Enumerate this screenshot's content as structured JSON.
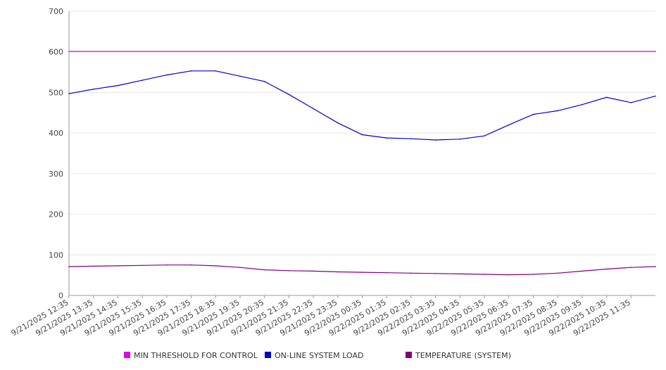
{
  "chart_data": {
    "type": "line",
    "title": "",
    "xlabel": "",
    "ylabel": "",
    "ylim": [
      0,
      700
    ],
    "y_ticks": [
      0,
      100,
      200,
      300,
      400,
      500,
      600,
      700
    ],
    "grid": "horizontal",
    "legend_position": "bottom",
    "x_tick_labels": [
      "9/21/2025 12:35",
      "9/21/2025 13:35",
      "9/21/2025 14:35",
      "9/21/2025 15:35",
      "9/21/2025 16:35",
      "9/21/2025 17:35",
      "9/21/2025 18:35",
      "9/21/2025 19:35",
      "9/21/2025 20:35",
      "9/21/2025 21:35",
      "9/21/2025 22:35",
      "9/21/2025 23:35",
      "9/22/2025 00:35",
      "9/22/2025 01:35",
      "9/22/2025 02:35",
      "9/22/2025 03:35",
      "9/22/2025 04:35",
      "9/22/2025 05:35",
      "9/22/2025 06:35",
      "9/22/2025 07:35",
      "9/22/2025 08:35",
      "9/22/2025 09:35",
      "9/22/2025 10:35",
      "9/22/2025 11:35"
    ],
    "x_range": [
      "9/21/2025 12:35",
      "9/22/2025 12:35"
    ],
    "series": [
      {
        "name": "MIN THRESHOLD FOR CONTROL",
        "color": "#e000e0",
        "x": [
          "9/21/2025 12:35",
          "9/22/2025 12:35"
        ],
        "values": [
          601,
          601
        ]
      },
      {
        "name": "ON-LINE SYSTEM LOAD",
        "color": "#0000cc",
        "x": [
          "9/21/2025 12:35",
          "9/21/2025 13:35",
          "9/21/2025 14:35",
          "9/21/2025 15:35",
          "9/21/2025 16:35",
          "9/21/2025 17:35",
          "9/21/2025 18:35",
          "9/21/2025 19:35",
          "9/21/2025 20:35",
          "9/21/2025 21:35",
          "9/21/2025 22:35",
          "9/21/2025 23:35",
          "9/22/2025 00:35",
          "9/22/2025 01:35",
          "9/22/2025 02:35",
          "9/22/2025 03:35",
          "9/22/2025 04:35",
          "9/22/2025 05:35",
          "9/22/2025 06:35",
          "9/22/2025 07:35",
          "9/22/2025 08:35",
          "9/22/2025 09:35",
          "9/22/2025 10:35",
          "9/22/2025 11:35",
          "9/22/2025 12:35"
        ],
        "values": [
          497,
          508,
          517,
          530,
          543,
          553,
          553,
          540,
          527,
          495,
          460,
          425,
          396,
          388,
          386,
          383,
          385,
          393,
          420,
          446,
          455,
          470,
          488,
          475,
          491
        ]
      },
      {
        "name": "TEMPERATURE (SYSTEM)",
        "color": "#800080",
        "x": [
          "9/21/2025 12:35",
          "9/21/2025 13:35",
          "9/21/2025 14:35",
          "9/21/2025 15:35",
          "9/21/2025 16:35",
          "9/21/2025 17:35",
          "9/21/2025 18:35",
          "9/21/2025 19:35",
          "9/21/2025 20:35",
          "9/21/2025 21:35",
          "9/21/2025 22:35",
          "9/21/2025 23:35",
          "9/22/2025 00:35",
          "9/22/2025 01:35",
          "9/22/2025 02:35",
          "9/22/2025 03:35",
          "9/22/2025 04:35",
          "9/22/2025 05:35",
          "9/22/2025 06:35",
          "9/22/2025 07:35",
          "9/22/2025 08:35",
          "9/22/2025 09:35",
          "9/22/2025 10:35",
          "9/22/2025 11:35",
          "9/22/2025 12:35"
        ],
        "values": [
          71,
          72,
          73,
          74,
          75,
          75,
          73,
          69,
          63,
          61,
          60,
          58,
          57,
          56,
          55,
          54,
          53,
          52,
          51,
          52,
          55,
          60,
          65,
          69,
          71
        ]
      }
    ]
  }
}
